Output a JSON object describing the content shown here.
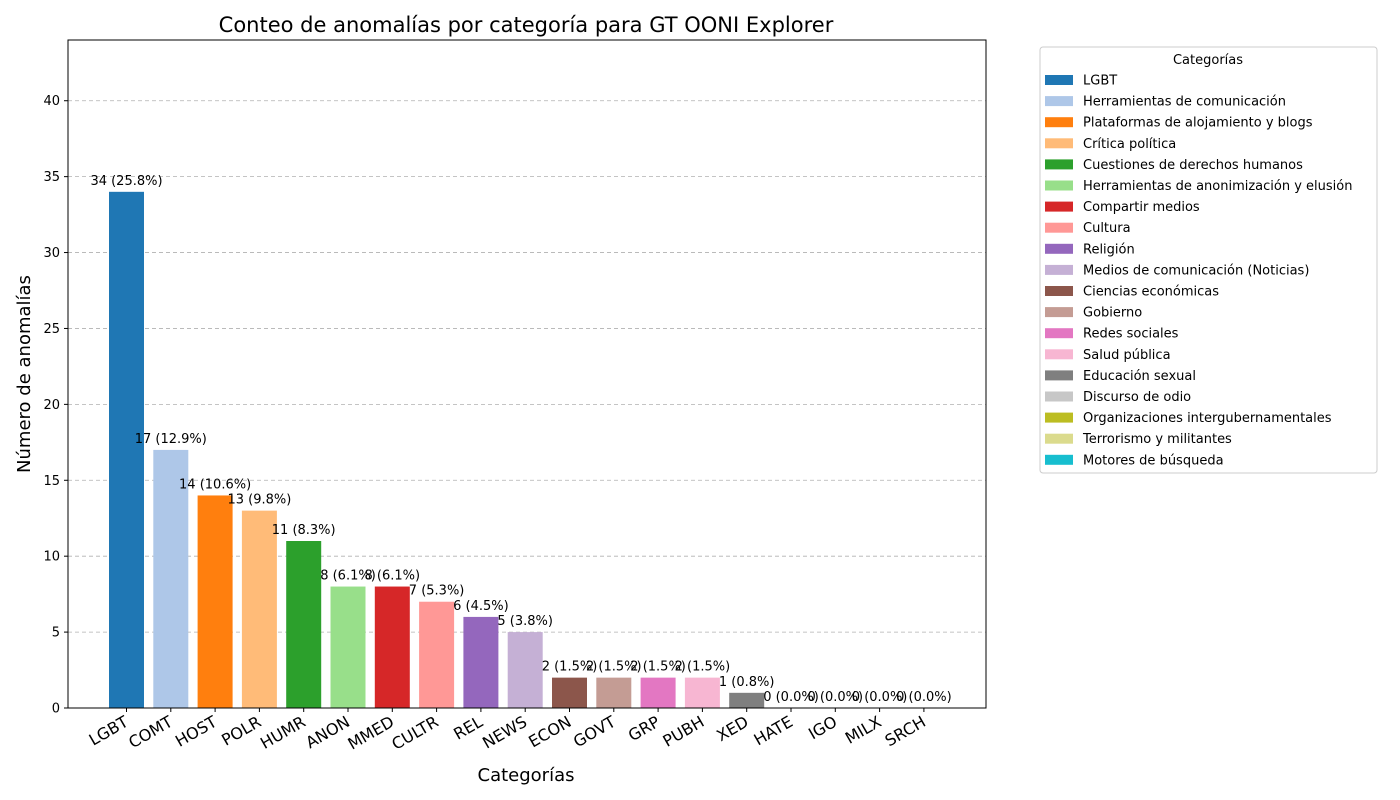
{
  "chart_data": {
    "type": "bar",
    "title": "Conteo de anomalías por categoría para GT OONI Explorer",
    "xlabel": "Categorías",
    "ylabel": "Número de anomalías",
    "ylim": [
      0,
      44
    ],
    "yticks": [
      0,
      5,
      10,
      15,
      20,
      25,
      30,
      35,
      40
    ],
    "grid": "y-dashed",
    "legend_title": "Categorías",
    "legend_position": "outside-right",
    "categories": [
      "LGBT",
      "COMT",
      "HOST",
      "POLR",
      "HUMR",
      "ANON",
      "MMED",
      "CULTR",
      "REL",
      "NEWS",
      "ECON",
      "GOVT",
      "GRP",
      "PUBH",
      "XED",
      "HATE",
      "IGO",
      "MILX",
      "SRCH"
    ],
    "values": [
      34,
      17,
      14,
      13,
      11,
      8,
      8,
      7,
      6,
      5,
      2,
      2,
      2,
      2,
      1,
      0,
      0,
      0,
      0
    ],
    "labels": [
      "34 (25.8%)",
      "17 (12.9%)",
      "14 (10.6%)",
      "13 (9.8%)",
      "11 (8.3%)",
      "8 (6.1%)",
      "8 (6.1%)",
      "7 (5.3%)",
      "6 (4.5%)",
      "5 (3.8%)",
      "2 (1.5%)",
      "2 (1.5%)",
      "2 (1.5%)",
      "2 (1.5%)",
      "1 (0.8%)",
      "0 (0.0%)",
      "0 (0.0%)",
      "0 (0.0%)",
      "0 (0.0%)"
    ],
    "colors": [
      "#1f77b4",
      "#aec7e8",
      "#ff7f0e",
      "#ffbb78",
      "#2ca02c",
      "#98df8a",
      "#d62728",
      "#ff9896",
      "#9467bd",
      "#c5b0d5",
      "#8c564b",
      "#c49c94",
      "#e377c2",
      "#f7b6d2",
      "#7f7f7f",
      "#c7c7c7",
      "#bcbd22",
      "#dbdb8d",
      "#17becf"
    ],
    "legend": [
      "LGBT",
      "Herramientas de comunicación",
      "Plataformas de alojamiento y blogs",
      "Crítica política",
      "Cuestiones de derechos humanos",
      "Herramientas de anonimización y elusión",
      "Compartir medios",
      "Cultura",
      "Religión",
      "Medios de comunicación (Noticias)",
      "Ciencias económicas",
      "Gobierno",
      "Redes sociales",
      "Salud pública",
      "Educación sexual",
      "Discurso de odio",
      "Organizaciones intergubernamentales",
      "Terrorismo y militantes",
      "Motores de búsqueda"
    ]
  }
}
